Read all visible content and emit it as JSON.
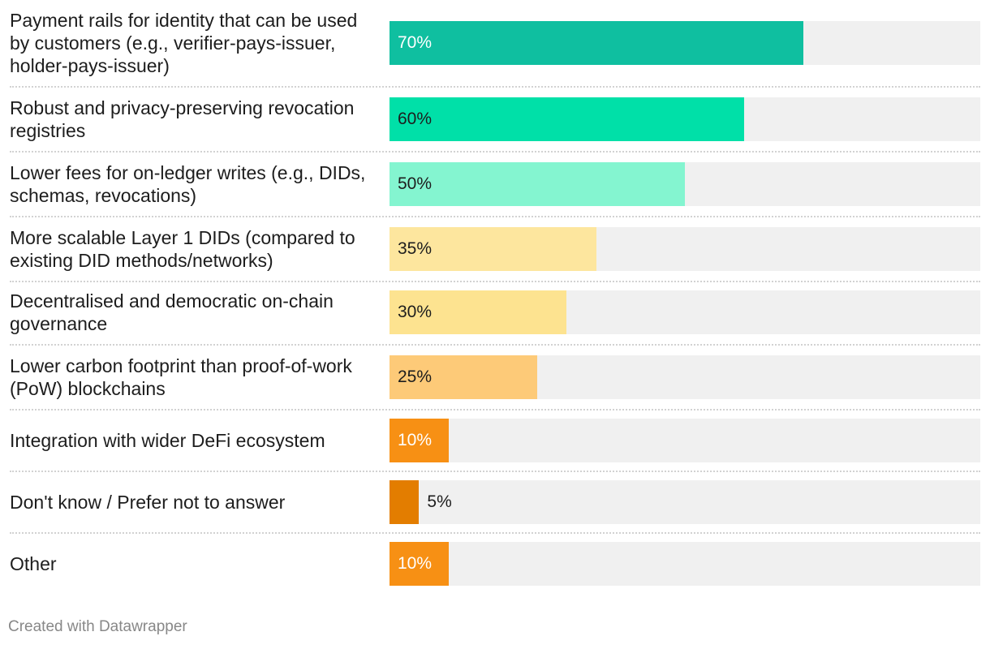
{
  "chart_data": {
    "type": "bar",
    "orientation": "horizontal",
    "categories": [
      "Payment rails for identity that can be used by customers (e.g., verifier-pays-issuer, holder-pays-issuer)",
      "Robust and privacy-preserving revocation registries",
      "Lower fees for on-ledger writes (e.g., DIDs, schemas, revocations)",
      "More scalable Layer 1 DIDs (compared to existing DID methods/networks)",
      "Decentralised and democratic on-chain governance",
      "Lower carbon footprint than proof-of-work (PoW) blockchains",
      "Integration with wider DeFi ecosystem",
      "Don't know / Prefer not to answer",
      "Other"
    ],
    "values": [
      70,
      60,
      50,
      35,
      30,
      25,
      10,
      5,
      10
    ],
    "value_labels": [
      "70%",
      "60%",
      "50%",
      "35%",
      "30%",
      "25%",
      "10%",
      "5%",
      "10%"
    ],
    "colors": [
      "#0fbfa0",
      "#00e0a8",
      "#84f5d0",
      "#fde69e",
      "#fde390",
      "#fdca78",
      "#f79014",
      "#e37d00",
      "#f79014"
    ],
    "label_colors": [
      "#ffffff",
      "#1d1d1d",
      "#1d1d1d",
      "#1d1d1d",
      "#1d1d1d",
      "#1d1d1d",
      "#ffffff",
      "#1d1d1d",
      "#ffffff"
    ],
    "xlim": [
      0,
      100
    ],
    "unit": "%",
    "title": "",
    "xlabel": "",
    "ylabel": ""
  },
  "footer": {
    "credit": "Created with Datawrapper"
  },
  "colors": {
    "track": "#f0f0f0",
    "separator": "#d2d2d2",
    "footer_text": "#888888"
  }
}
